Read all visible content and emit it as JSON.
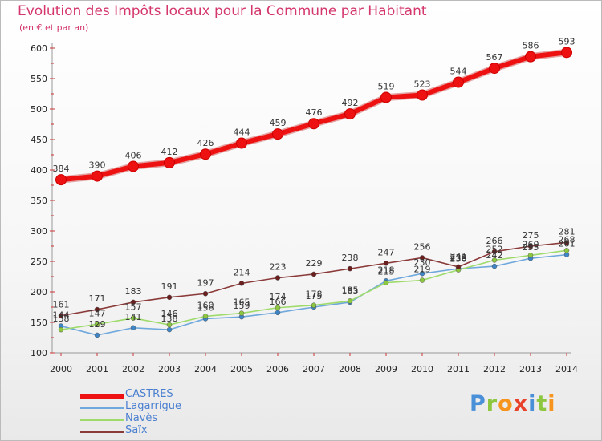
{
  "title": "Evolution des Impôts locaux pour la Commune par Habitant",
  "subtitle": "(en € et par an)",
  "logo": {
    "text": "Proxiti",
    "letters": [
      {
        "ch": "P",
        "color": "#4a90d9"
      },
      {
        "ch": "r",
        "color": "#8dc63f"
      },
      {
        "ch": "o",
        "color": "#f7941d"
      },
      {
        "ch": "x",
        "color": "#e8412c"
      },
      {
        "ch": "i",
        "color": "#4a90d9"
      },
      {
        "ch": "t",
        "color": "#8dc63f"
      },
      {
        "ch": "i",
        "color": "#f7941d"
      }
    ]
  },
  "chart_data": {
    "type": "line",
    "title": "Evolution des Impôts locaux pour la Commune par Habitant",
    "ylabel": "(en € et par an)",
    "x": [
      "2000",
      "2001",
      "2002",
      "2003",
      "2004",
      "2005",
      "2006",
      "2007",
      "2008",
      "2009",
      "2010",
      "2011",
      "2012",
      "2013",
      "2014"
    ],
    "ylim": [
      100,
      600
    ],
    "yticks": [
      100,
      150,
      200,
      250,
      300,
      350,
      400,
      450,
      500,
      550,
      600
    ],
    "grid": false,
    "legend_position": "bottom-left",
    "series": [
      {
        "name": "CASTRES",
        "color": "#ee1111",
        "marker": "#ee1111",
        "values": [
          384,
          390,
          406,
          412,
          426,
          444,
          459,
          476,
          492,
          519,
          523,
          544,
          567,
          586,
          593
        ],
        "labels": [
          "384",
          "390",
          "406",
          "412",
          "426",
          "444",
          "459",
          "476",
          "492",
          "519",
          "523",
          "544",
          "567",
          "586",
          "593"
        ]
      },
      {
        "name": "Lagarrigue",
        "color": "#6fa8dc",
        "marker": "#3d85c6",
        "values": [
          144,
          129,
          141,
          138,
          156,
          159,
          166,
          175,
          183,
          218,
          230,
          238,
          242,
          255,
          261
        ],
        "labels": [
          "144",
          "129",
          "141",
          "138",
          "156",
          "159",
          "166",
          "175",
          "183",
          "218",
          "230",
          "238",
          "242",
          "255",
          "261"
        ]
      },
      {
        "name": "Navès",
        "color": "#9edb6b",
        "marker": "#8dc63f",
        "values": [
          138,
          147,
          157,
          146,
          160,
          165,
          174,
          178,
          185,
          215,
          219,
          236,
          252,
          260,
          268
        ],
        "labels": [
          "138",
          "147",
          "157",
          "146",
          "160",
          "165",
          "174",
          "178",
          "185",
          "215",
          "219",
          "236",
          "252",
          "260",
          "268"
        ]
      },
      {
        "name": "Saïx",
        "color": "#8b3a3a",
        "marker": "#6b1e1e",
        "values": [
          161,
          171,
          183,
          191,
          197,
          214,
          223,
          229,
          238,
          247,
          256,
          241,
          266,
          275,
          281
        ],
        "labels": [
          "161",
          "171",
          "183",
          "191",
          "197",
          "214",
          "223",
          "229",
          "238",
          "247",
          "256",
          "241",
          "266",
          "275",
          "281"
        ]
      }
    ]
  }
}
